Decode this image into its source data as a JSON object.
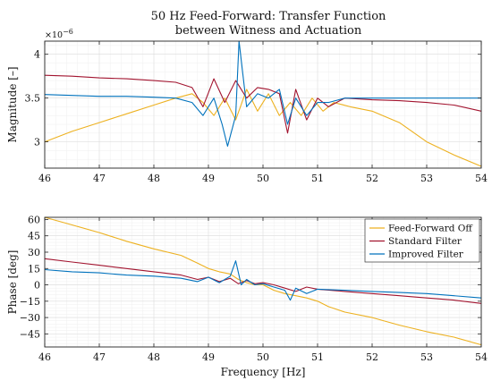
{
  "title_line1": "50 Hz Feed-Forward: Transfer Function",
  "title_line2": "between Witness and Actuation",
  "colors": {
    "ff_off": "#EDB120",
    "standard": "#A2142F",
    "improved": "#0072BD"
  },
  "chart_data": [
    {
      "type": "line",
      "ylabel": "Magnitude [–]",
      "y_exponent": "×10",
      "y_exponent_power": "−6",
      "xlim": [
        46,
        54
      ],
      "ylim": [
        2.7,
        4.15
      ],
      "xticks": [
        46,
        47,
        48,
        49,
        50,
        51,
        52,
        53,
        54
      ],
      "xtick_labels": [
        "46",
        "47",
        "48",
        "49",
        "50",
        "51",
        "52",
        "53",
        "54"
      ],
      "yticks": [
        3,
        3.5,
        4
      ],
      "ytick_labels": [
        "3",
        "3.5",
        "4"
      ],
      "grid": true,
      "series": [
        {
          "key": "ff_off",
          "x": [
            46,
            46.5,
            47,
            47.5,
            48,
            48.4,
            48.7,
            48.9,
            49.1,
            49.3,
            49.5,
            49.7,
            49.9,
            50.1,
            50.3,
            50.5,
            50.7,
            50.9,
            51.1,
            51.3,
            51.6,
            52,
            52.5,
            53,
            53.5,
            54
          ],
          "y": [
            3.0,
            3.12,
            3.22,
            3.32,
            3.42,
            3.5,
            3.55,
            3.45,
            3.3,
            3.5,
            3.25,
            3.6,
            3.35,
            3.55,
            3.3,
            3.45,
            3.3,
            3.5,
            3.35,
            3.45,
            3.4,
            3.35,
            3.22,
            3.0,
            2.85,
            2.72
          ]
        },
        {
          "key": "standard",
          "x": [
            46,
            46.5,
            47,
            47.5,
            48,
            48.4,
            48.7,
            48.9,
            49.1,
            49.3,
            49.5,
            49.7,
            49.9,
            50.1,
            50.3,
            50.45,
            50.6,
            50.8,
            51,
            51.2,
            51.5,
            52,
            52.5,
            53,
            53.5,
            54
          ],
          "y": [
            3.76,
            3.75,
            3.73,
            3.72,
            3.7,
            3.68,
            3.62,
            3.4,
            3.72,
            3.45,
            3.7,
            3.5,
            3.62,
            3.6,
            3.55,
            3.1,
            3.6,
            3.25,
            3.5,
            3.4,
            3.5,
            3.48,
            3.47,
            3.45,
            3.42,
            3.35
          ]
        },
        {
          "key": "improved",
          "x": [
            46,
            46.5,
            47,
            47.5,
            48,
            48.4,
            48.7,
            48.9,
            49.1,
            49.25,
            49.35,
            49.5,
            49.56,
            49.7,
            49.9,
            50.1,
            50.3,
            50.45,
            50.6,
            50.8,
            51,
            51.2,
            51.5,
            52,
            52.5,
            53,
            53.5,
            54
          ],
          "y": [
            3.54,
            3.53,
            3.52,
            3.52,
            3.51,
            3.5,
            3.45,
            3.3,
            3.5,
            3.2,
            2.95,
            3.3,
            4.15,
            3.4,
            3.55,
            3.5,
            3.6,
            3.2,
            3.5,
            3.3,
            3.45,
            3.45,
            3.5,
            3.5,
            3.5,
            3.5,
            3.5,
            3.5
          ]
        }
      ]
    },
    {
      "type": "line",
      "xlabel": "Frequency [Hz]",
      "ylabel": "Phase [deg]",
      "xlim": [
        46,
        54
      ],
      "ylim": [
        -57,
        62
      ],
      "xticks": [
        46,
        47,
        48,
        49,
        50,
        51,
        52,
        53,
        54
      ],
      "xtick_labels": [
        "46",
        "47",
        "48",
        "49",
        "50",
        "51",
        "52",
        "53",
        "54"
      ],
      "yticks": [
        60,
        45,
        30,
        15,
        0,
        -15,
        -30,
        -45
      ],
      "ytick_labels": [
        "60",
        "45",
        "30",
        "15",
        "0",
        "−15",
        "−30",
        "−45"
      ],
      "grid": true,
      "legend_position": "top-right",
      "series": [
        {
          "key": "ff_off",
          "name": "Feed-Forward Off",
          "x": [
            46,
            46.5,
            47,
            47.5,
            48,
            48.5,
            48.8,
            49.0,
            49.2,
            49.4,
            49.55,
            49.7,
            49.85,
            50.0,
            50.2,
            50.4,
            50.6,
            50.8,
            51.0,
            51.2,
            51.5,
            52,
            52.5,
            53,
            53.5,
            54
          ],
          "y": [
            62,
            55,
            48,
            40,
            33,
            27,
            20,
            15,
            12,
            10,
            5,
            2,
            0,
            0,
            -5,
            -8,
            -10,
            -12,
            -15,
            -20,
            -25,
            -30,
            -37,
            -43,
            -48,
            -55
          ]
        },
        {
          "key": "standard",
          "name": "Standard Filter",
          "x": [
            46,
            46.5,
            47,
            47.5,
            48,
            48.5,
            48.8,
            49.0,
            49.2,
            49.4,
            49.55,
            49.7,
            49.85,
            50.0,
            50.2,
            50.4,
            50.6,
            50.8,
            51.0,
            51.5,
            52,
            52.5,
            53,
            53.5,
            54
          ],
          "y": [
            24,
            21,
            18,
            15,
            12,
            9,
            5,
            7,
            3,
            6,
            1,
            4,
            1,
            2,
            0,
            -3,
            -6,
            -2,
            -4,
            -6,
            -8,
            -10,
            -12,
            -14,
            -17
          ]
        },
        {
          "key": "improved",
          "name": "Improved Filter",
          "x": [
            46,
            46.5,
            47,
            47.5,
            48,
            48.5,
            48.8,
            49.0,
            49.2,
            49.4,
            49.5,
            49.6,
            49.7,
            49.85,
            50.0,
            50.2,
            50.4,
            50.5,
            50.6,
            50.8,
            51.0,
            51.5,
            52,
            52.5,
            53,
            53.5,
            54
          ],
          "y": [
            14,
            12,
            11,
            9,
            8,
            6,
            3,
            7,
            2,
            8,
            22,
            0,
            5,
            0,
            1,
            -2,
            -5,
            -14,
            -3,
            -8,
            -4,
            -5,
            -6,
            -7,
            -8,
            -10,
            -12
          ]
        }
      ]
    }
  ]
}
